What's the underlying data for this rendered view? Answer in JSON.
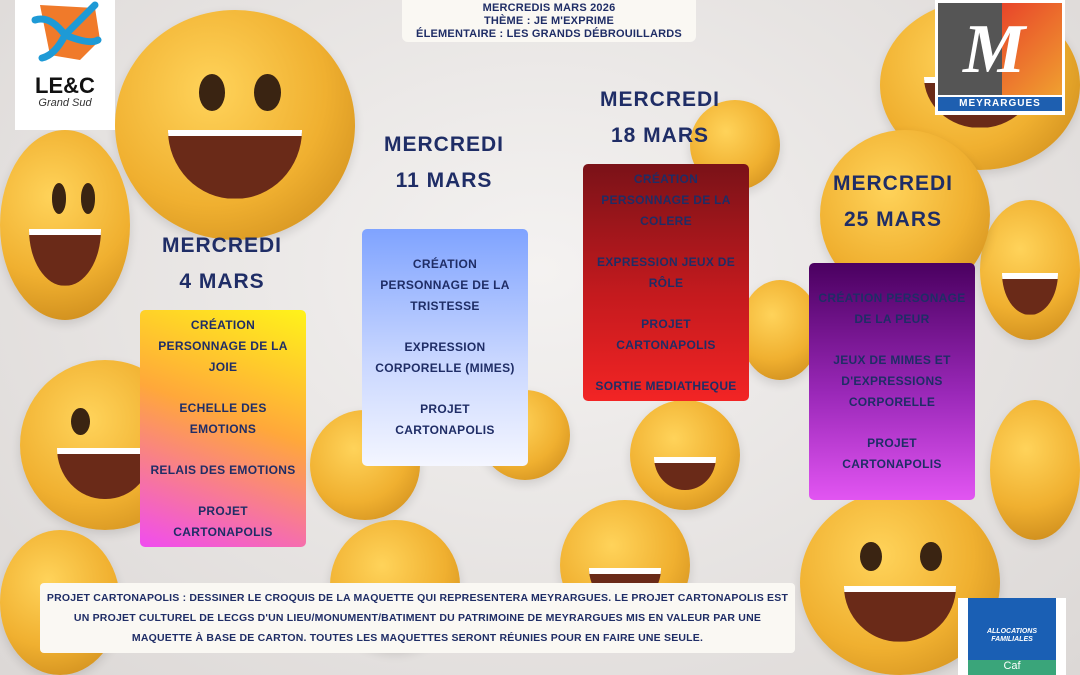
{
  "header": {
    "line1": "MERCREDIS MARS 2026",
    "theme": "THÈME : JE M'EXPRIME",
    "group": "ÉLEMENTAIRE : LES GRANDS DÉBROUILLARDS"
  },
  "logos": {
    "left": {
      "name": "LE&C",
      "subtitle": "Grand Sud"
    },
    "right": {
      "name": "MEYRARGUES"
    },
    "caf": {
      "line1": "ALLOCATIONS",
      "line2": "FAMILIALES",
      "line3": "Caf"
    }
  },
  "days": [
    {
      "title": "MERCREDI",
      "date": "4 MARS",
      "activities": [
        "CRÉATION PERSONNAGE DE LA JOIE",
        "ECHELLE DES EMOTIONS",
        "RELAIS DES EMOTIONS",
        "PROJET CARTONAPOLIS"
      ]
    },
    {
      "title": "MERCREDI",
      "date": "11 MARS",
      "activities": [
        "CRÉATION PERSONNAGE DE LA TRISTESSE",
        "EXPRESSION CORPORELLE (MIMES)",
        "PROJET CARTONAPOLIS"
      ]
    },
    {
      "title": "MERCREDI",
      "date": "18 MARS",
      "activities": [
        "CRÉATION PERSONNAGE DE LA COLERE",
        "EXPRESSION JEUX DE RÔLE",
        "PROJET CARTONAPOLIS",
        "SORTIE MEDIATHEQUE"
      ]
    },
    {
      "title": "MERCREDI",
      "date": "25 MARS",
      "activities": [
        "CRÉATION PERSONAGE DE LA PEUR",
        "JEUX DE MIMES ET D'EXPRESSIONS CORPORELLE",
        "PROJET CARTONAPOLIS"
      ]
    }
  ],
  "footer": {
    "line1": "PROJET CARTONAPOLIS : DESSINER LE CROQUIS DE LA MAQUETTE QUI REPRESENTERA MEYRARGUES. LE PROJET CARTONAPOLIS EST",
    "line2": "UN PROJET CULTUREL DE LECGS D'UN LIEU/MONUMENT/BATIMENT DU PATRIMOINE DE MEYRARGUES MIS EN VALEUR PAR UNE",
    "line3": "MAQUETTE À BASE DE CARTON. TOUTES LES MAQUETTES SERONT RÉUNIES POUR EN FAIRE UNE SEULE."
  },
  "colors": {
    "text": "#1f2d66",
    "emoji": "#f0b030",
    "caf_blue": "#1a5fb4",
    "caf_green": "#3aa57a"
  }
}
